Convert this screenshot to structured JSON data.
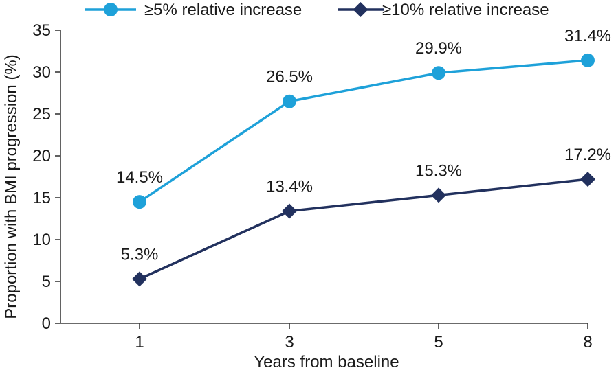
{
  "chart_data": {
    "type": "line",
    "title": "",
    "xlabel": "Years from baseline",
    "ylabel": "Proportion with BMI progression (%)",
    "categories": [
      "1",
      "3",
      "5",
      "8"
    ],
    "ylim": [
      0,
      35
    ],
    "yticks": [
      0,
      5,
      10,
      15,
      20,
      25,
      30,
      35
    ],
    "grid": false,
    "legend_position": "top",
    "series": [
      {
        "name": "≥5% relative increase",
        "marker": "circle",
        "color": "#1ea1d9",
        "values": [
          14.5,
          26.5,
          29.9,
          31.4
        ],
        "labels": [
          "14.5%",
          "26.5%",
          "29.9%",
          "31.4%"
        ]
      },
      {
        "name": "≥10% relative increase",
        "marker": "diamond",
        "color": "#22315e",
        "values": [
          5.3,
          13.4,
          15.3,
          17.2
        ],
        "labels": [
          "5.3%",
          "13.4%",
          "15.3%",
          "17.2%"
        ]
      }
    ]
  }
}
